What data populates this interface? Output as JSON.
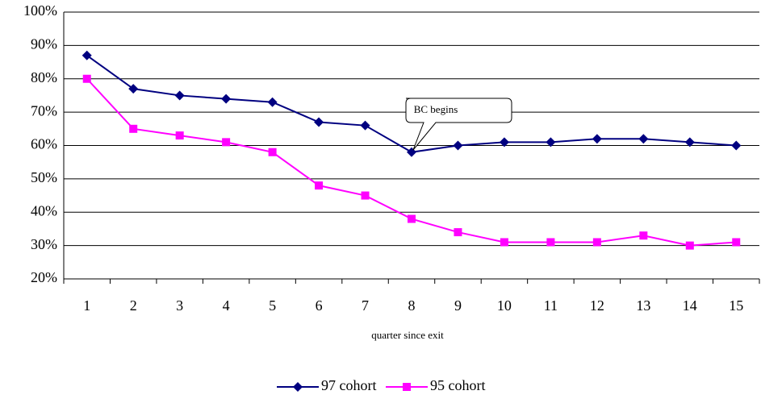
{
  "chart_data": {
    "type": "line",
    "x_label": "quarter since exit",
    "annotation": "BC begins",
    "categories": [
      "1",
      "2",
      "3",
      "4",
      "5",
      "6",
      "7",
      "8",
      "9",
      "10",
      "11",
      "12",
      "13",
      "14",
      "15"
    ],
    "series": [
      {
        "name": "97 cohort",
        "color": "#000080",
        "marker": "diamond",
        "values": [
          87,
          77,
          75,
          74,
          73,
          67,
          66,
          58,
          60,
          61,
          61,
          62,
          62,
          61,
          60
        ]
      },
      {
        "name": "95 cohort",
        "color": "#ff00ff",
        "marker": "square",
        "values": [
          80,
          65,
          63,
          61,
          58,
          48,
          45,
          38,
          34,
          31,
          31,
          31,
          33,
          30,
          31
        ]
      }
    ],
    "ylim": [
      20,
      100
    ],
    "yticks": [
      {
        "value": 20,
        "label": "20%"
      },
      {
        "value": 30,
        "label": "30%"
      },
      {
        "value": 40,
        "label": "40%"
      },
      {
        "value": 50,
        "label": "50%"
      },
      {
        "value": 60,
        "label": "60%"
      },
      {
        "value": 70,
        "label": "70%"
      },
      {
        "value": 80,
        "label": "80%"
      },
      {
        "value": 90,
        "label": "90%"
      },
      {
        "value": 100,
        "label": "100%"
      }
    ],
    "grid": true
  }
}
